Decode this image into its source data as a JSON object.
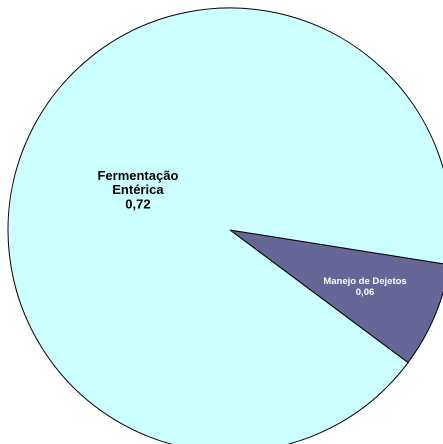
{
  "chart_data": {
    "type": "pie",
    "categories": [
      "Fermentação Entérica",
      "Manejo de Dejetos"
    ],
    "values": [
      0.72,
      0.06
    ],
    "value_labels": [
      "0,72",
      "0,06"
    ],
    "colors": [
      "#ccffff",
      "#666699"
    ]
  }
}
